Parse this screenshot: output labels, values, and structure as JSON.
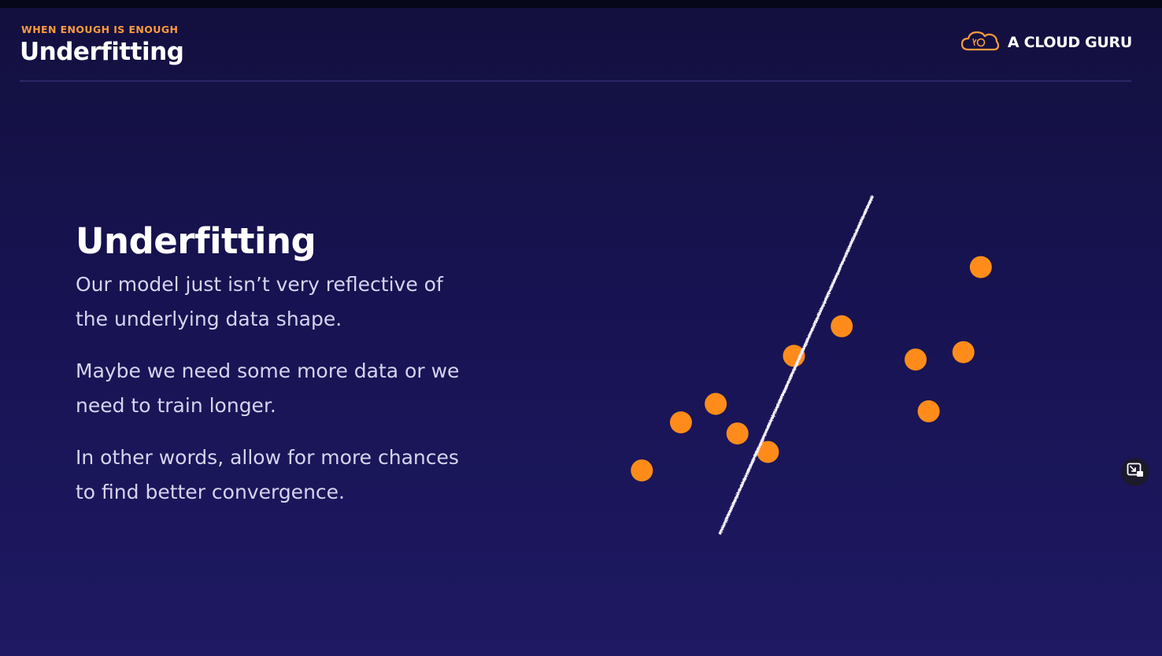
{
  "header": {
    "eyebrow": "WHEN ENOUGH IS ENOUGH",
    "title": "Underfitting"
  },
  "brand": {
    "name": "A CLOUD GURU",
    "logo_icon": "cloud-logo-icon"
  },
  "content": {
    "title": "Underfitting",
    "paragraphs": [
      "Our model just isn’t very reflective of the underlying data shape.",
      "Maybe we need some more data or we need to train longer.",
      "In other words, allow for more chances to find better convergence."
    ]
  },
  "colors": {
    "accent": "#ff8c1a",
    "eyebrow": "#ff9a3c",
    "background": "#171352"
  },
  "chart_data": {
    "type": "scatter",
    "title": "",
    "xlabel": "",
    "ylabel": "",
    "grid": false,
    "xlim": [
      0,
      100
    ],
    "ylim": [
      0,
      100
    ],
    "points": [
      {
        "x": 14,
        "y": 17
      },
      {
        "x": 23,
        "y": 30
      },
      {
        "x": 31,
        "y": 35
      },
      {
        "x": 36,
        "y": 27
      },
      {
        "x": 43,
        "y": 22
      },
      {
        "x": 49,
        "y": 48
      },
      {
        "x": 60,
        "y": 56
      },
      {
        "x": 77,
        "y": 47
      },
      {
        "x": 80,
        "y": 33
      },
      {
        "x": 88,
        "y": 49
      },
      {
        "x": 92,
        "y": 72
      }
    ],
    "fit_line": {
      "x1": 32,
      "y1": 0,
      "x2": 67,
      "y2": 91
    }
  },
  "pip": {
    "icon": "picture-in-picture-icon"
  }
}
